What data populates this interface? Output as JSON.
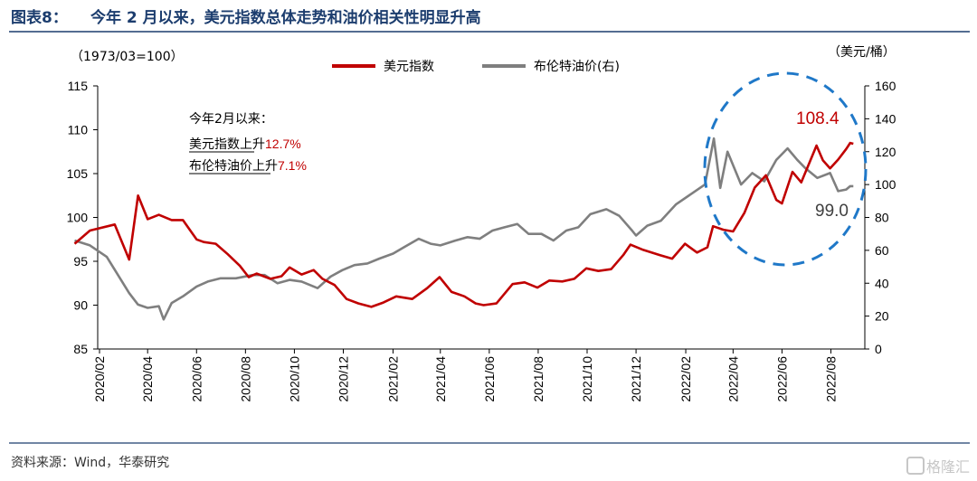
{
  "header": {
    "figure_label": "图表8：",
    "title": "今年 2 月以来，美元指数总体走势和油价相关性明显升高"
  },
  "footer": {
    "source": "资料来源：Wind，华泰研究",
    "watermark": "格隆汇"
  },
  "colors": {
    "dxy": "#c00000",
    "brent": "#7f7f7f",
    "title": "#1c3d6e",
    "rule": "#1c3d6e",
    "circle": "#1f78c8"
  },
  "chart_data": {
    "type": "line",
    "left_unit": "（1973/03=100）",
    "right_unit": "（美元/桶）",
    "x_ticks": [
      "2020/02",
      "2020/04",
      "2020/06",
      "2020/08",
      "2020/10",
      "2020/12",
      "2021/02",
      "2021/04",
      "2021/06",
      "2021/08",
      "2021/10",
      "2021/12",
      "2022/02",
      "2022/04",
      "2022/06",
      "2022/08"
    ],
    "ylim_left": [
      85,
      115
    ],
    "yticks_left": [
      85,
      90,
      95,
      100,
      105,
      110,
      115
    ],
    "ylim_right": [
      0,
      160
    ],
    "yticks_right": [
      0,
      20,
      40,
      60,
      80,
      100,
      120,
      140,
      160
    ],
    "legend": [
      "美元指数",
      "布伦特油价(右)"
    ],
    "legend_position": "top-center",
    "annotation": {
      "line1": "今年2月以来：",
      "line2_name": "美元指数",
      "line2_mid": "上升",
      "line2_val": "12.7%",
      "line3_name": "布伦特油价",
      "line3_mid": "上升",
      "line3_val": "7.1%"
    },
    "label_dxy_end": "108.4",
    "label_brent_end": "99.0",
    "series": [
      {
        "name": "美元指数",
        "axis": "left",
        "x": [
          "2020-01-01",
          "2020-01-20",
          "2020-02-20",
          "2020-03-09",
          "2020-03-20",
          "2020-04-01",
          "2020-04-15",
          "2020-05-01",
          "2020-05-15",
          "2020-06-01",
          "2020-06-10",
          "2020-06-25",
          "2020-07-10",
          "2020-07-25",
          "2020-08-05",
          "2020-08-15",
          "2020-09-01",
          "2020-09-15",
          "2020-09-25",
          "2020-10-10",
          "2020-10-25",
          "2020-11-05",
          "2020-11-20",
          "2020-12-05",
          "2020-12-20",
          "2021-01-05",
          "2021-01-20",
          "2021-02-05",
          "2021-02-25",
          "2021-03-15",
          "2021-03-31",
          "2021-04-15",
          "2021-05-01",
          "2021-05-15",
          "2021-05-25",
          "2021-06-10",
          "2021-06-30",
          "2021-07-15",
          "2021-07-31",
          "2021-08-15",
          "2021-08-31",
          "2021-09-15",
          "2021-09-30",
          "2021-10-15",
          "2021-10-31",
          "2021-11-15",
          "2021-11-24",
          "2021-12-10",
          "2021-12-31",
          "2022-01-15",
          "2022-01-31",
          "2022-02-15",
          "2022-02-28",
          "2022-03-07",
          "2022-03-20",
          "2022-04-01",
          "2022-04-15",
          "2022-04-28",
          "2022-05-12",
          "2022-05-25",
          "2022-06-01",
          "2022-06-14",
          "2022-06-25",
          "2022-07-05",
          "2022-07-14",
          "2022-07-22",
          "2022-07-31",
          "2022-08-10",
          "2022-08-20",
          "2022-08-25",
          "2022-08-29"
        ],
        "values": [
          97.0,
          98.5,
          99.2,
          95.2,
          102.5,
          99.8,
          100.3,
          99.7,
          99.7,
          97.5,
          97.2,
          97.0,
          95.8,
          94.5,
          93.2,
          93.6,
          93.0,
          93.3,
          94.3,
          93.5,
          94.0,
          93.0,
          92.3,
          90.7,
          90.2,
          89.8,
          90.3,
          91.0,
          90.7,
          91.9,
          93.2,
          91.5,
          91.0,
          90.2,
          90.0,
          90.2,
          92.4,
          92.6,
          92.0,
          92.8,
          92.7,
          93.0,
          94.2,
          93.9,
          94.1,
          95.7,
          96.9,
          96.3,
          95.7,
          95.3,
          97.0,
          96.0,
          96.6,
          99.0,
          98.6,
          98.4,
          100.5,
          103.4,
          104.8,
          102.0,
          101.6,
          105.2,
          104.0,
          106.2,
          108.2,
          106.5,
          105.6,
          106.6,
          107.8,
          108.5,
          108.4
        ]
      },
      {
        "name": "布伦特油价(右)",
        "axis": "right",
        "x": [
          "2020-01-01",
          "2020-01-20",
          "2020-02-10",
          "2020-03-09",
          "2020-03-20",
          "2020-04-01",
          "2020-04-15",
          "2020-04-21",
          "2020-05-01",
          "2020-05-15",
          "2020-06-01",
          "2020-06-15",
          "2020-07-01",
          "2020-07-20",
          "2020-08-10",
          "2020-08-25",
          "2020-09-10",
          "2020-09-25",
          "2020-10-10",
          "2020-10-30",
          "2020-11-15",
          "2020-11-30",
          "2020-12-15",
          "2020-12-31",
          "2021-01-15",
          "2021-02-01",
          "2021-02-15",
          "2021-03-05",
          "2021-03-20",
          "2021-04-01",
          "2021-04-20",
          "2021-05-05",
          "2021-05-20",
          "2021-06-05",
          "2021-06-20",
          "2021-07-06",
          "2021-07-20",
          "2021-08-05",
          "2021-08-20",
          "2021-09-05",
          "2021-09-20",
          "2021-10-05",
          "2021-10-25",
          "2021-11-10",
          "2021-11-26",
          "2021-12-01",
          "2021-12-15",
          "2022-01-01",
          "2022-01-20",
          "2022-02-10",
          "2022-02-25",
          "2022-03-08",
          "2022-03-16",
          "2022-03-25",
          "2022-04-11",
          "2022-04-25",
          "2022-05-10",
          "2022-05-25",
          "2022-06-08",
          "2022-06-20",
          "2022-06-30",
          "2022-07-15",
          "2022-07-31",
          "2022-08-10",
          "2022-08-20",
          "2022-08-25",
          "2022-08-29"
        ],
        "values": [
          66,
          63,
          56,
          34,
          27,
          25,
          26,
          18,
          28,
          32,
          38,
          41,
          43,
          43,
          45,
          45,
          40,
          42,
          41,
          37,
          44,
          48,
          51,
          52,
          55,
          58,
          62,
          67,
          64,
          63,
          66,
          68,
          67,
          72,
          74,
          76,
          70,
          70,
          66,
          72,
          74,
          82,
          85,
          81,
          72,
          69,
          75,
          78,
          88,
          95,
          100,
          128,
          98,
          120,
          100,
          107,
          102,
          115,
          122,
          115,
          110,
          104,
          107,
          96,
          97,
          99,
          99
        ]
      }
    ]
  }
}
